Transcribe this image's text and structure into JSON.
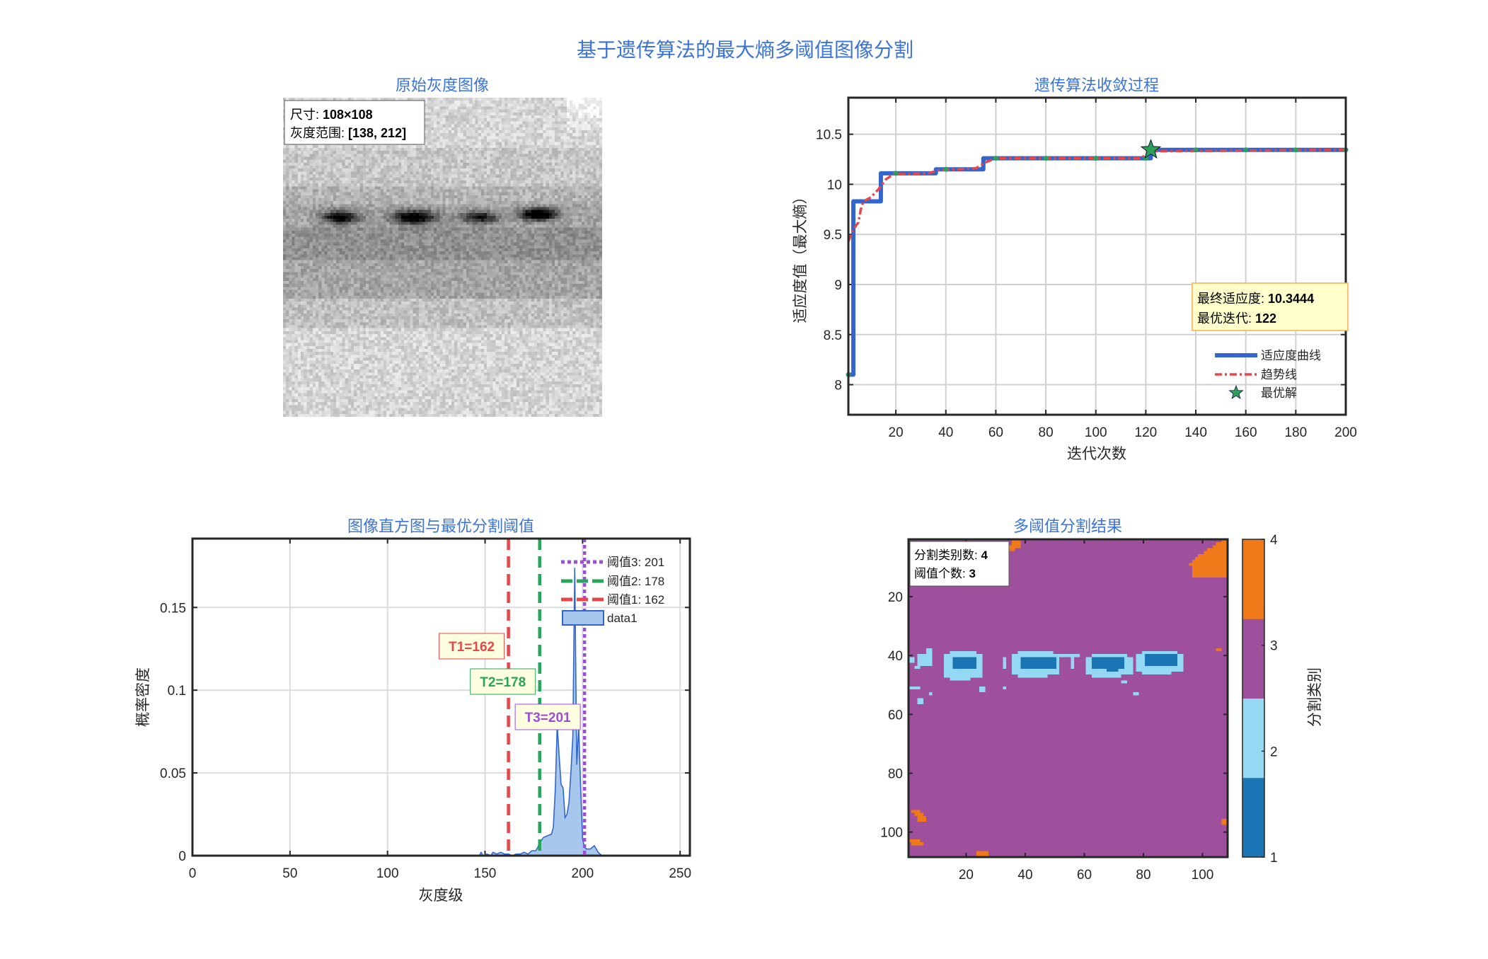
{
  "figure": {
    "title": "基于遗传算法的最大熵多阈值图像分割",
    "title_color": "#2F6FD6"
  },
  "chart_data": [
    {
      "type": "image",
      "title": "原始灰度图像",
      "colormap": "gray",
      "info": {
        "size_label": "尺寸: ",
        "size_value": "108×108",
        "range_label": "灰度范围: ",
        "range_value": "[138, 212]"
      }
    },
    {
      "type": "line",
      "title": "遗传算法收敛过程",
      "xlabel": "迭代次数",
      "ylabel": "适应度值（最大熵）",
      "xlim": [
        1,
        200
      ],
      "ylim": [
        7.7,
        10.865
      ],
      "xticks": [
        20,
        40,
        60,
        80,
        100,
        120,
        140,
        160,
        180,
        200
      ],
      "yticks": [
        8,
        8.5,
        9,
        9.5,
        10,
        10.5
      ],
      "grid": true,
      "series": [
        {
          "name": "适应度曲线",
          "color": "#3366CC",
          "style": "solid-step",
          "steps": [
            [
              1,
              8.1
            ],
            [
              3,
              9.83
            ],
            [
              14,
              10.11
            ],
            [
              36,
              10.15
            ],
            [
              55,
              10.26
            ],
            [
              122,
              10.3444
            ],
            [
              200,
              10.3444
            ]
          ]
        },
        {
          "name": "趋势线",
          "color": "#E8474A",
          "style": "dash-dot",
          "points": [
            [
              1,
              9.43
            ],
            [
              3,
              9.55
            ],
            [
              5,
              9.62
            ],
            [
              6,
              9.75
            ],
            [
              7,
              9.83
            ],
            [
              10,
              9.87
            ],
            [
              13,
              9.95
            ],
            [
              16,
              10.05
            ],
            [
              19,
              10.1
            ],
            [
              33,
              10.11
            ],
            [
              37,
              10.14
            ],
            [
              52,
              10.16
            ],
            [
              56,
              10.22
            ],
            [
              60,
              10.26
            ],
            [
              118,
              10.26
            ],
            [
              122,
              10.33
            ],
            [
              200,
              10.3444
            ]
          ]
        },
        {
          "name": "最优解",
          "color": "#2CA05A",
          "style": "star-marker",
          "points": [
            [
              122,
              10.3444
            ]
          ]
        }
      ],
      "markers": {
        "color": "#2CA05A",
        "iterations": [
          1,
          20,
          40,
          60,
          80,
          100,
          120,
          140,
          160,
          180,
          200
        ]
      },
      "legend_placement": "bottom-right",
      "annotation": {
        "final_label": "最终适应度: ",
        "final_value": "10.3444",
        "best_label": "最优迭代: ",
        "best_value": "122"
      }
    },
    {
      "type": "area",
      "title": "图像直方图与最优分割阈值",
      "xlabel": "灰度级",
      "ylabel": "概率密度",
      "xlim": [
        0,
        255
      ],
      "ylim": [
        0,
        0.1916
      ],
      "xticks": [
        0,
        50,
        100,
        150,
        200,
        250
      ],
      "yticks": [
        0,
        0.05,
        0.1,
        0.15
      ],
      "grid": true,
      "histogram": {
        "name": "data1",
        "color": "#3366CC",
        "fill": "#A7C8EC",
        "points": [
          [
            145,
            0
          ],
          [
            147,
            0.0
          ],
          [
            148,
            0.002
          ],
          [
            149,
            0
          ],
          [
            151,
            0.001
          ],
          [
            153,
            0.0
          ],
          [
            154,
            0.002
          ],
          [
            156,
            0.001
          ],
          [
            158,
            0.002
          ],
          [
            160,
            0.001
          ],
          [
            162,
            0.001
          ],
          [
            164,
            0.0
          ],
          [
            166,
            0.001
          ],
          [
            168,
            0.001
          ],
          [
            170,
            0.002
          ],
          [
            172,
            0.001
          ],
          [
            174,
            0.003
          ],
          [
            176,
            0.003
          ],
          [
            177,
            0.005
          ],
          [
            178,
            0.008
          ],
          [
            180,
            0.011
          ],
          [
            182,
            0.012
          ],
          [
            184,
            0.013
          ],
          [
            185,
            0.017
          ],
          [
            186,
            0.04
          ],
          [
            187,
            0.079
          ],
          [
            188,
            0.06
          ],
          [
            189,
            0.043
          ],
          [
            190,
            0.041
          ],
          [
            191,
            0.023
          ],
          [
            192,
            0.025
          ],
          [
            193,
            0.032
          ],
          [
            194,
            0.05
          ],
          [
            195,
            0.072
          ],
          [
            196,
            0.174
          ],
          [
            197,
            0.055
          ],
          [
            198,
            0.078
          ],
          [
            199,
            0.041
          ],
          [
            200,
            0.01
          ],
          [
            201,
            0.005
          ],
          [
            202,
            0.004
          ],
          [
            204,
            0.004
          ],
          [
            205,
            0.005
          ],
          [
            206,
            0.006
          ],
          [
            207,
            0.004
          ],
          [
            208,
            0.002
          ],
          [
            210,
            0
          ]
        ]
      },
      "thresholds": [
        {
          "name": "阈值1: 162",
          "value": 162,
          "color": "#E8474A",
          "style": "dashed",
          "tag": "T1=162"
        },
        {
          "name": "阈值2: 178",
          "value": 178,
          "color": "#27A55A",
          "style": "dashed",
          "tag": "T2=178"
        },
        {
          "name": "阈值3: 201",
          "value": 201,
          "color": "#9B4FD6",
          "style": "dotted",
          "tag": "T3=201"
        }
      ],
      "legend_placement": "top-right"
    },
    {
      "type": "heatmap",
      "title": "多阈值分割结果",
      "xticks": [
        20,
        40,
        60,
        80,
        100
      ],
      "yticks": [
        20,
        40,
        60,
        80,
        100
      ],
      "colorbar": {
        "label": "分割类别",
        "ticks": [
          1,
          2,
          3,
          4
        ],
        "colors": [
          "#1B74B4",
          "#95D8F4",
          "#9E509C",
          "#F07A1A"
        ]
      },
      "info": {
        "classes_label": "分割类别数: ",
        "classes_value": "4",
        "thresholds_label": "阈值个数: ",
        "thresholds_value": "3"
      }
    }
  ]
}
